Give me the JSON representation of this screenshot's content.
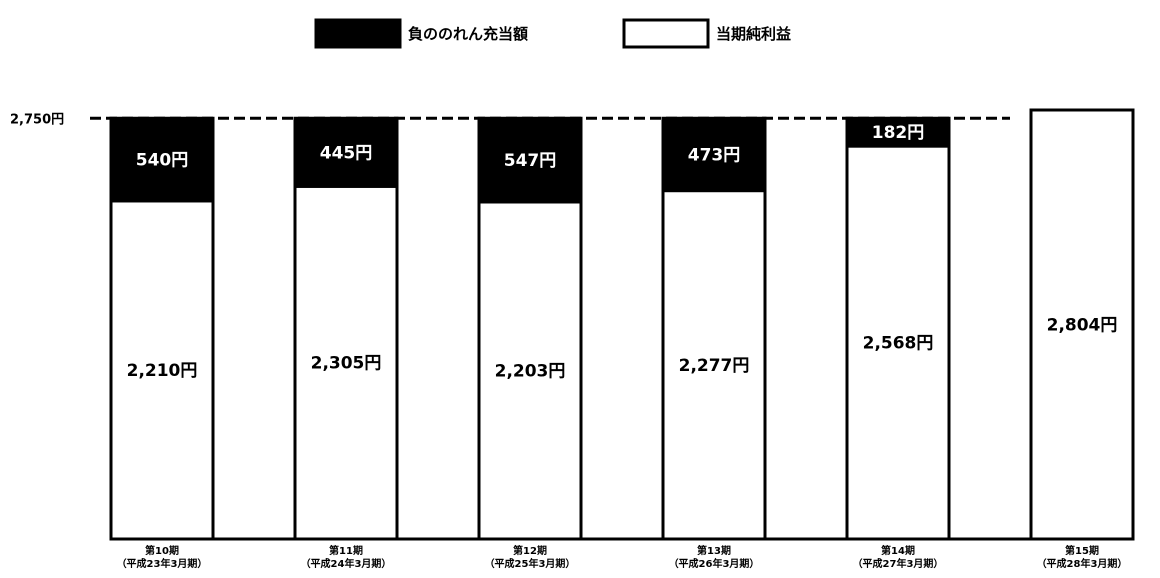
{
  "chart_data": {
    "type": "bar",
    "stacked": true,
    "title": "",
    "xlabel": "",
    "ylabel": "",
    "ylim": [
      0,
      2804
    ],
    "grid": false,
    "legend_position": "top-center",
    "categories": [
      [
        "第10期",
        "（平成23年3月期）"
      ],
      [
        "第11期",
        "（平成24年3月期）"
      ],
      [
        "第12期",
        "（平成25年3月期）"
      ],
      [
        "第13期",
        "（平成26年3月期）"
      ],
      [
        "第14期",
        "（平成27年3月期）"
      ],
      [
        "第15期",
        "（平成28年3月期）"
      ]
    ],
    "series": [
      {
        "name": "当期純利益",
        "values": [
          2210,
          2305,
          2203,
          2277,
          2568,
          2804
        ],
        "labels": [
          "2,210円",
          "2,305円",
          "2,203円",
          "2,277円",
          "2,568円",
          "2,804円"
        ],
        "color": "#ffffff"
      },
      {
        "name": "負ののれん充当額",
        "values": [
          540,
          445,
          547,
          473,
          182,
          0
        ],
        "labels": [
          "540円",
          "445円",
          "547円",
          "473円",
          "182円",
          ""
        ],
        "color": "#000000"
      }
    ],
    "reference_line": {
      "value": 2750,
      "label": "2,750円",
      "style": "dashed"
    }
  }
}
